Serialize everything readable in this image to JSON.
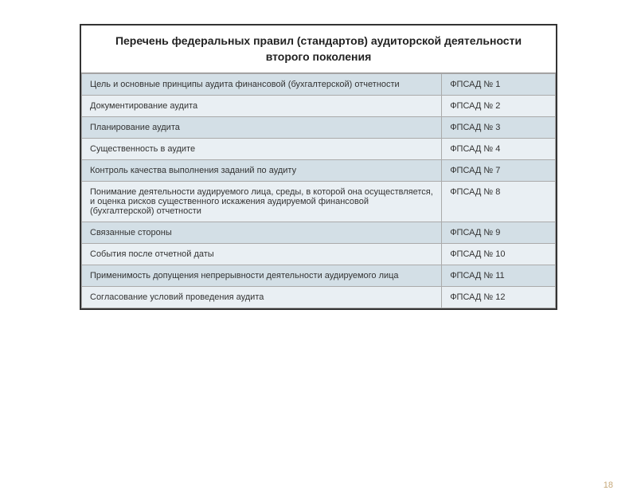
{
  "title": "Перечень федеральных правил (стандартов) аудиторской деятельности второго поколения",
  "rows": [
    {
      "desc": "Цель  и основные принципы аудита финансовой (бухгалтерской) отчетности",
      "code": "ФПСАД № 1"
    },
    {
      "desc": "Документирование аудита",
      "code": "ФПСАД № 2"
    },
    {
      "desc": "Планирование аудита",
      "code": "ФПСАД № 3"
    },
    {
      "desc": "Существенность в аудите",
      "code": "ФПСАД № 4"
    },
    {
      "desc": "Контроль качества выполнения заданий по аудиту",
      "code": "ФПСАД № 7"
    },
    {
      "desc": "Понимание деятельности аудируемого лица, среды, в которой она осуществляется, и оценка рисков существенного искажения аудируемой финансовой (бухгалтерской) отчетности",
      "code": "ФПСАД № 8"
    },
    {
      "desc": "Связанные стороны",
      "code": "ФПСАД № 9"
    },
    {
      "desc": "События после отчетной даты",
      "code": "ФПСАД № 10"
    },
    {
      "desc": "Применимость допущения непрерывности деятельности аудируемого лица",
      "code": "ФПСАД № 11"
    },
    {
      "desc": "Согласование условий проведения аудита",
      "code": "ФПСАД № 12"
    }
  ],
  "pageNumber": "18",
  "colors": {
    "row_even": "#d3dfe6",
    "row_odd": "#e9eff3",
    "border": "#aaa",
    "outer_border": "#333",
    "text": "#333",
    "page_num": "#c6a87a"
  }
}
